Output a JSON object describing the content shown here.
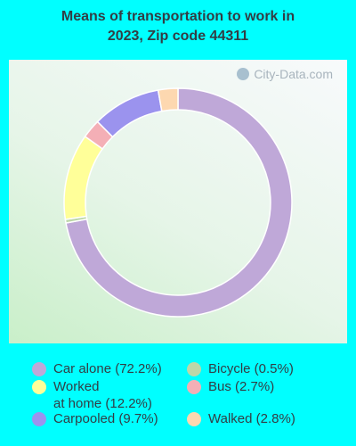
{
  "title_line1": "Means of transportation to work in",
  "title_line2": "2023, Zip code 44311",
  "watermark": "City-Data.com",
  "chart_data": {
    "type": "pie",
    "title": "Means of transportation to work in 2023, Zip code 44311",
    "slices": [
      {
        "label": "Car alone (72.2%)",
        "value": 72.2,
        "color": "#bfa8d8"
      },
      {
        "label": "Bicycle (0.5%)",
        "value": 0.5,
        "color": "#bcd7a8"
      },
      {
        "label": "Worked at home (12.2%)",
        "value": 12.2,
        "color": "#ffff99"
      },
      {
        "label": "Bus (2.7%)",
        "value": 2.7,
        "color": "#f4afb6"
      },
      {
        "label": "Carpooled (9.7%)",
        "value": 9.7,
        "color": "#9b93ee"
      },
      {
        "label": "Walked (2.8%)",
        "value": 2.8,
        "color": "#fdd8b0"
      }
    ],
    "legend": [
      {
        "line1": "Car alone (72.2%)",
        "line2": "",
        "color": "#bfa8d8"
      },
      {
        "line1": "Worked",
        "line2": "at home (12.2%)",
        "color": "#ffff99"
      },
      {
        "line1": "Carpooled (9.7%)",
        "line2": "",
        "color": "#9b93ee"
      },
      {
        "line1": "Bicycle (0.5%)",
        "line2": "",
        "color": "#bcd7a8"
      },
      {
        "line1": "Bus (2.7%)",
        "line2": "",
        "color": "#f4afb6"
      },
      {
        "line1": "Walked (2.8%)",
        "line2": "",
        "color": "#fdd8b0"
      }
    ]
  }
}
